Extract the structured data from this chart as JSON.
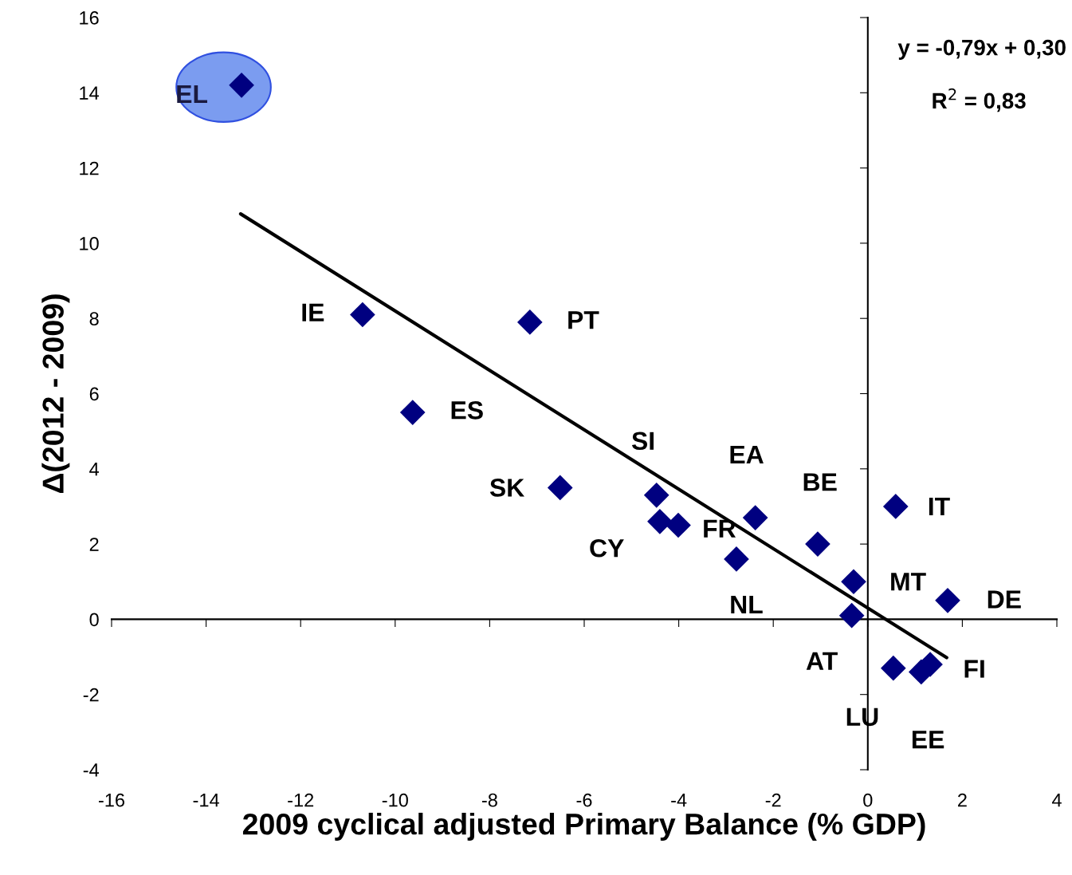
{
  "chart_data": {
    "type": "scatter",
    "xlabel": "2009 cyclical adjusted Primary Balance (% GDP)",
    "ylabel": "Δ(2012 - 2009)",
    "xlim": [
      -16,
      4
    ],
    "xticks": [
      -16,
      -14,
      -12,
      -10,
      -8,
      -6,
      -4,
      -2,
      0,
      2,
      4
    ],
    "ylim": [
      -4,
      16
    ],
    "yticks": [
      -4,
      -2,
      0,
      2,
      4,
      6,
      8,
      10,
      12,
      14,
      16
    ],
    "legend": false,
    "series": [
      {
        "marker": "diamond",
        "color": "#000080",
        "x": [
          -13.25,
          -10.69,
          -7.15,
          -9.63,
          -6.51,
          -4.47,
          -4.4,
          -4.01,
          -2.38,
          -2.78,
          -1.06,
          0.59,
          -0.3,
          -0.34,
          1.69,
          0.54,
          1.13,
          1.32
        ],
        "values": [
          14.2,
          8.1,
          7.9,
          5.5,
          3.5,
          3.3,
          2.6,
          2.5,
          2.7,
          1.6,
          2.0,
          3.0,
          1.0,
          0.1,
          0.5,
          -1.3,
          -1.4,
          -1.2
        ]
      },
      {
        "type": "line",
        "color": "#000000",
        "x": [
          -13.27,
          1.67
        ],
        "values": [
          10.78,
          -1.02
        ]
      }
    ],
    "annotations": [
      {
        "text": "EL",
        "x": -13.25,
        "y": 14.2
      },
      {
        "text": "IE",
        "x": -10.69,
        "y": 8.1
      },
      {
        "text": "PT",
        "x": -7.15,
        "y": 7.9
      },
      {
        "text": "ES",
        "x": -9.63,
        "y": 5.5
      },
      {
        "text": "SK",
        "x": -6.51,
        "y": 3.5
      },
      {
        "text": "SI",
        "x": -4.47,
        "y": 3.3
      },
      {
        "text": "CY",
        "x": -4.4,
        "y": 2.6
      },
      {
        "text": "FR",
        "x": -4.01,
        "y": 2.5
      },
      {
        "text": "EA",
        "x": -2.38,
        "y": 2.7
      },
      {
        "text": "NL",
        "x": -2.78,
        "y": 1.6
      },
      {
        "text": "BE",
        "x": -1.06,
        "y": 2.0
      },
      {
        "text": "IT",
        "x": 0.59,
        "y": 3.0
      },
      {
        "text": "MT",
        "x": -0.3,
        "y": 1.0
      },
      {
        "text": "AT",
        "x": -0.34,
        "y": 0.1
      },
      {
        "text": "DE",
        "x": 1.69,
        "y": 0.5
      },
      {
        "text": "LU",
        "x": 0.54,
        "y": -1.3
      },
      {
        "text": "EE",
        "x": 1.13,
        "y": -1.4
      },
      {
        "text": "FI",
        "x": 1.32,
        "y": -1.2
      },
      "y = -0,79x + 0,30",
      "R$^{2}$ = 0,83"
    ]
  }
}
